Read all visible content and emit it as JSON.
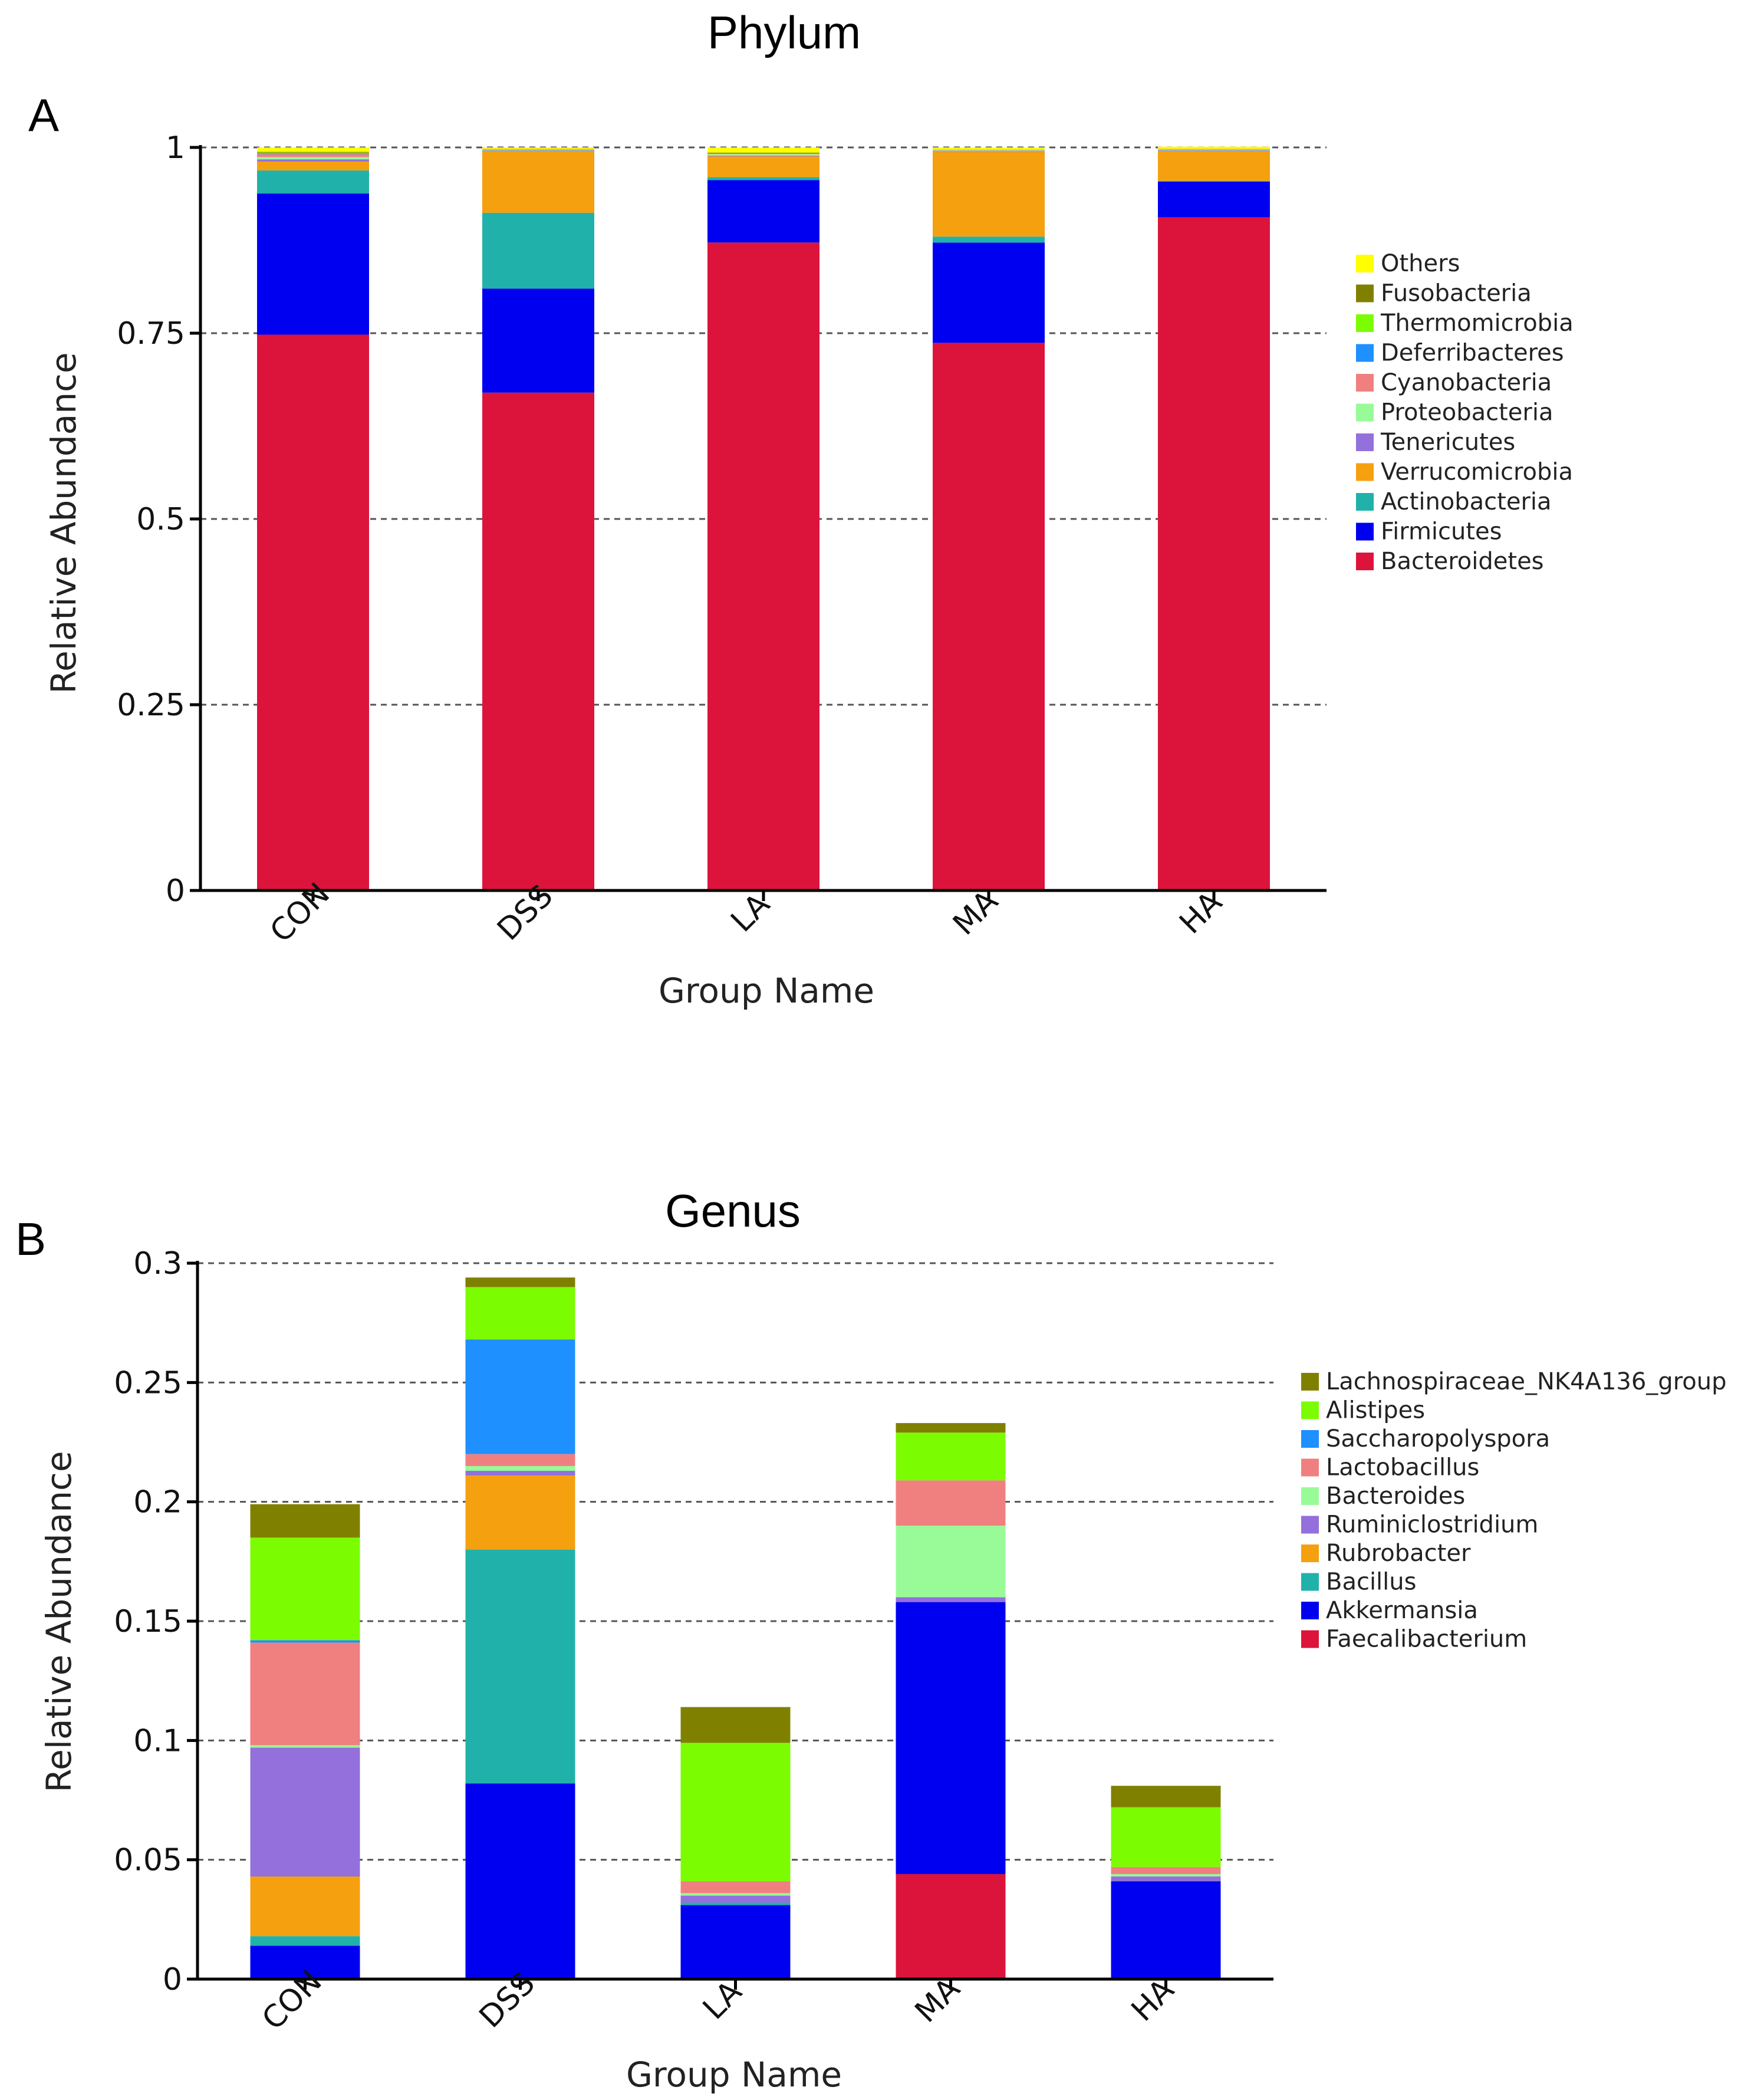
{
  "chart_data": [
    {
      "type": "bar",
      "stacked": true,
      "panel_label": "A",
      "title": "Phylum",
      "xlabel": "Group Name",
      "ylabel": "Relative Abundance",
      "ylim": [
        0,
        1
      ],
      "yticks": [
        0,
        0.25,
        0.5,
        0.75,
        1
      ],
      "ytick_labels": [
        "0",
        "0.25",
        "0.5",
        "0.75",
        "1"
      ],
      "grid": true,
      "legend_position": "right",
      "categories": [
        "CON",
        "DSS",
        "LA",
        "MA",
        "HA"
      ],
      "series": [
        {
          "name": "Bacteroidetes",
          "color": "#DC143C",
          "values": [
            0.748,
            0.67,
            0.872,
            0.737,
            0.906
          ]
        },
        {
          "name": "Firmicutes",
          "color": "#0000F0",
          "values": [
            0.19,
            0.14,
            0.084,
            0.135,
            0.048
          ]
        },
        {
          "name": "Actinobacteria",
          "color": "#20B2AA",
          "values": [
            0.031,
            0.102,
            0.004,
            0.008,
            0.001
          ]
        },
        {
          "name": "Verrucomicrobia",
          "color": "#F5A00F",
          "values": [
            0.012,
            0.083,
            0.028,
            0.114,
            0.04
          ]
        },
        {
          "name": "Tenericutes",
          "color": "#9370DB",
          "values": [
            0.003,
            0.001,
            0.001,
            0.001,
            0.001
          ]
        },
        {
          "name": "Proteobacteria",
          "color": "#98FB98",
          "values": [
            0.003,
            0.001,
            0.002,
            0.001,
            0.001
          ]
        },
        {
          "name": "Cyanobacteria",
          "color": "#F08080",
          "values": [
            0.004,
            0.001,
            0.001,
            0.001,
            0.001
          ]
        },
        {
          "name": "Deferribacteres",
          "color": "#1E90FF",
          "values": [
            0.001,
            0.0,
            0.0,
            0.0,
            0.0
          ]
        },
        {
          "name": "Thermomicrobia",
          "color": "#7CFC00",
          "values": [
            0.001,
            0.0,
            0.0,
            0.0,
            0.0
          ]
        },
        {
          "name": "Fusobacteria",
          "color": "#808000",
          "values": [
            0.001,
            0.0,
            0.001,
            0.0,
            0.0
          ]
        },
        {
          "name": "Others",
          "color": "#FFFF00",
          "values": [
            0.006,
            0.002,
            0.007,
            0.003,
            0.003
          ]
        }
      ]
    },
    {
      "type": "bar",
      "stacked": true,
      "panel_label": "B",
      "title": "Genus",
      "xlabel": "Group Name",
      "ylabel": "Relative Abundance",
      "ylim": [
        0,
        0.3
      ],
      "yticks": [
        0,
        0.05,
        0.1,
        0.15,
        0.2,
        0.25,
        0.3
      ],
      "ytick_labels": [
        "0",
        "0.05",
        "0.1",
        "0.15",
        "0.2",
        "0.25",
        "0.3"
      ],
      "grid": true,
      "legend_position": "right",
      "categories": [
        "CON",
        "DSS",
        "LA",
        "MA",
        "HA"
      ],
      "series": [
        {
          "name": "Faecalibacterium",
          "color": "#DC143C",
          "values": [
            0.0,
            0.0,
            0.0,
            0.044,
            0.0
          ]
        },
        {
          "name": "Akkermansia",
          "color": "#0000F0",
          "values": [
            0.014,
            0.082,
            0.031,
            0.114,
            0.041
          ]
        },
        {
          "name": "Bacillus",
          "color": "#20B2AA",
          "values": [
            0.004,
            0.098,
            0.001,
            0.0,
            0.0
          ]
        },
        {
          "name": "Rubrobacter",
          "color": "#F5A00F",
          "values": [
            0.025,
            0.031,
            0.0,
            0.0,
            0.0
          ]
        },
        {
          "name": "Ruminiclostridium",
          "color": "#9370DB",
          "values": [
            0.054,
            0.002,
            0.003,
            0.002,
            0.002
          ]
        },
        {
          "name": "Bacteroides",
          "color": "#98FB98",
          "values": [
            0.001,
            0.002,
            0.001,
            0.03,
            0.001
          ]
        },
        {
          "name": "Lactobacillus",
          "color": "#F08080",
          "values": [
            0.043,
            0.005,
            0.005,
            0.019,
            0.003
          ]
        },
        {
          "name": "Saccharopolyspora",
          "color": "#1E90FF",
          "values": [
            0.001,
            0.048,
            0.0,
            0.0,
            0.0
          ]
        },
        {
          "name": "Alistipes",
          "color": "#7CFC00",
          "values": [
            0.043,
            0.022,
            0.058,
            0.02,
            0.025
          ]
        },
        {
          "name": "Lachnospiraceae_NK4A136_group",
          "color": "#808000",
          "values": [
            0.014,
            0.004,
            0.015,
            0.004,
            0.009
          ]
        }
      ]
    }
  ]
}
